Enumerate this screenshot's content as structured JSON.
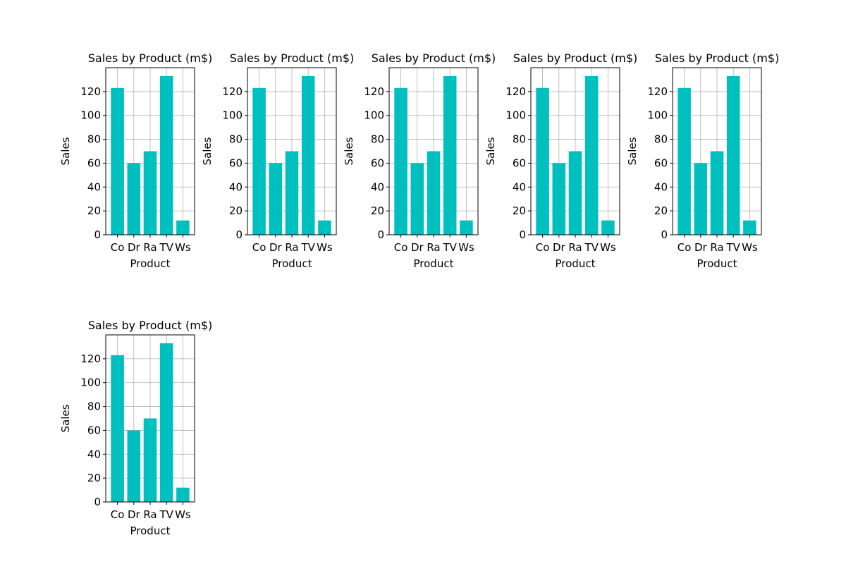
{
  "figure": {
    "background": "#ffffff",
    "bar_color": "#00bfbf",
    "grid_color": "#b0b0b0"
  },
  "chart_data": [
    {
      "type": "bar",
      "title": "Sales by Product (m$)",
      "xlabel": "Product",
      "ylabel": "Sales",
      "categories": [
        "Co",
        "Dr",
        "Ra",
        "TV",
        "Ws"
      ],
      "values": [
        123,
        60,
        70,
        133,
        12
      ],
      "ylim": [
        0,
        140
      ],
      "yticks": [
        0,
        20,
        40,
        60,
        80,
        100,
        120
      ],
      "grid": true
    },
    {
      "type": "bar",
      "title": "Sales by Product (m$)",
      "xlabel": "Product",
      "ylabel": "Sales",
      "categories": [
        "Co",
        "Dr",
        "Ra",
        "TV",
        "Ws"
      ],
      "values": [
        123,
        60,
        70,
        133,
        12
      ],
      "ylim": [
        0,
        140
      ],
      "yticks": [
        0,
        20,
        40,
        60,
        80,
        100,
        120
      ],
      "grid": true
    },
    {
      "type": "bar",
      "title": "Sales by Product (m$)",
      "xlabel": "Product",
      "ylabel": "Sales",
      "categories": [
        "Co",
        "Dr",
        "Ra",
        "TV",
        "Ws"
      ],
      "values": [
        123,
        60,
        70,
        133,
        12
      ],
      "ylim": [
        0,
        140
      ],
      "yticks": [
        0,
        20,
        40,
        60,
        80,
        100,
        120
      ],
      "grid": true
    },
    {
      "type": "bar",
      "title": "Sales by Product (m$)",
      "xlabel": "Product",
      "ylabel": "Sales",
      "categories": [
        "Co",
        "Dr",
        "Ra",
        "TV",
        "Ws"
      ],
      "values": [
        123,
        60,
        70,
        133,
        12
      ],
      "ylim": [
        0,
        140
      ],
      "yticks": [
        0,
        20,
        40,
        60,
        80,
        100,
        120
      ],
      "grid": true
    },
    {
      "type": "bar",
      "title": "Sales by Product (m$)",
      "xlabel": "Product",
      "ylabel": "Sales",
      "categories": [
        "Co",
        "Dr",
        "Ra",
        "TV",
        "Ws"
      ],
      "values": [
        123,
        60,
        70,
        133,
        12
      ],
      "ylim": [
        0,
        140
      ],
      "yticks": [
        0,
        20,
        40,
        60,
        80,
        100,
        120
      ],
      "grid": true
    },
    {
      "type": "bar",
      "title": "Sales by Product (m$)",
      "xlabel": "Product",
      "ylabel": "Sales",
      "categories": [
        "Co",
        "Dr",
        "Ra",
        "TV",
        "Ws"
      ],
      "values": [
        123,
        60,
        70,
        133,
        12
      ],
      "ylim": [
        0,
        140
      ],
      "yticks": [
        0,
        20,
        40,
        60,
        80,
        100,
        120
      ],
      "grid": true
    }
  ]
}
